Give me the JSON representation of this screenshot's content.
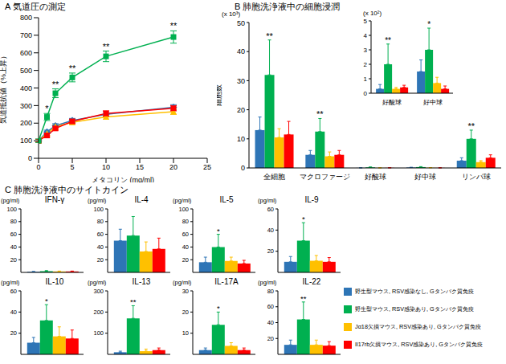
{
  "section_title": "C 肺胞洗浄液中のサイトカイン",
  "chart_data": [
    {
      "type": "line",
      "title": "A 気道圧の測定",
      "xlabel": "メタコリン (mg/ml)",
      "ylabel": "気道抵抗値（%上昇）",
      "x": [
        0,
        1.25,
        2.5,
        5,
        10,
        20
      ],
      "xlim": [
        0,
        25
      ],
      "xticks": [
        0,
        5,
        10,
        15,
        20,
        25
      ],
      "ylim": [
        0,
        800
      ],
      "yticks": [
        0,
        100,
        200,
        300,
        400,
        500,
        600,
        700,
        800
      ],
      "series": [
        {
          "name": "野生型マウス, RSV感染なし, Gタンパク質免疫",
          "color": "#2E75B6",
          "marker": "diamond",
          "values": [
            100,
            150,
            185,
            215,
            250,
            290
          ],
          "errors": [
            8,
            10,
            12,
            12,
            15,
            15
          ]
        },
        {
          "name": "野生型マウス, RSV感染あり, Gタンパク質免疫",
          "color": "#00B050",
          "marker": "square",
          "values": [
            100,
            235,
            370,
            460,
            580,
            690
          ],
          "errors": [
            10,
            20,
            25,
            25,
            30,
            35
          ],
          "annotations": [
            null,
            "*",
            "**",
            "**",
            "**",
            "**"
          ]
        },
        {
          "name": "Jα18欠損マウス, RSV感染あり, Gタンパク質免疫",
          "color": "#FFC000",
          "marker": "triangle",
          "values": [
            100,
            140,
            180,
            205,
            235,
            265
          ],
          "errors": [
            8,
            10,
            10,
            12,
            12,
            15
          ]
        },
        {
          "name": "Il17rb欠損マウス, RSV感染あり, Gタンパク質免疫",
          "color": "#FF0000",
          "marker": "square",
          "values": [
            100,
            130,
            170,
            210,
            255,
            285
          ],
          "errors": [
            8,
            10,
            10,
            12,
            15,
            15
          ]
        }
      ]
    },
    {
      "type": "bar",
      "title": "B 肺胞洗浄液中の細胞浸潤",
      "ylabel": "細胞数",
      "y_unit_label": "(x 10³)",
      "categories": [
        "全細胞",
        "マクロファージ",
        "好酸球",
        "好中球",
        "リンパ球"
      ],
      "ylim": [
        0,
        50
      ],
      "yticks": [
        0,
        10,
        20,
        30,
        40,
        50
      ],
      "series": [
        {
          "name": "野生型マウス, RSV感染なし, Gタンパク質免疫",
          "color": "#2E75B6",
          "values": [
            13,
            4.5,
            0.03,
            0.15,
            2.5
          ],
          "errors": [
            4.5,
            1.5,
            0.03,
            0.08,
            1
          ]
        },
        {
          "name": "野生型マウス, RSV感染あり, Gタンパク質免疫",
          "color": "#00B050",
          "values": [
            32,
            12.5,
            0.2,
            0.3,
            10
          ],
          "errors": [
            12,
            4.5,
            0.14,
            0.15,
            3
          ],
          "annotations": [
            "**",
            "**",
            null,
            null,
            "**"
          ]
        },
        {
          "name": "Jα18欠損マウス, RSV感染あり, Gタンパク質免疫",
          "color": "#FFC000",
          "values": [
            10.5,
            4,
            0.03,
            0.07,
            2
          ],
          "errors": [
            3,
            1.5,
            0.01,
            0.04,
            0.5
          ]
        },
        {
          "name": "Il17rb欠損マウス, RSV感染あり, Gタンパク質免疫",
          "color": "#FF0000",
          "values": [
            11.5,
            4.5,
            0.04,
            0.03,
            3.5
          ],
          "errors": [
            4.5,
            1.5,
            0.015,
            0.02,
            1
          ]
        }
      ]
    },
    {
      "type": "bar",
      "y_unit_label": "(x 10²)",
      "categories": [
        "好酸球",
        "好中球"
      ],
      "ylim": [
        0,
        5
      ],
      "yticks": [
        0,
        1,
        2,
        3,
        4,
        5
      ],
      "series": [
        {
          "name": "野生型マウス, RSV感染なし, Gタンパク質免疫",
          "color": "#2E75B6",
          "values": [
            0.3,
            1.5
          ],
          "errors": [
            0.3,
            0.8
          ]
        },
        {
          "name": "野生型マウス, RSV感染あり, Gタンパク質免疫",
          "color": "#00B050",
          "values": [
            2.0,
            3.0
          ],
          "errors": [
            1.4,
            1.5
          ],
          "annotations": [
            "**",
            "*"
          ]
        },
        {
          "name": "Jα18欠損マウス, RSV感染あり, Gタンパク質免疫",
          "color": "#FFC000",
          "values": [
            0.3,
            0.7
          ],
          "errors": [
            0.1,
            0.4
          ]
        },
        {
          "name": "Il17rb欠損マウス, RSV感染あり, Gタンパク質免疫",
          "color": "#FF0000",
          "values": [
            0.4,
            0.3
          ],
          "errors": [
            0.15,
            0.2
          ]
        }
      ]
    },
    {
      "type": "bar",
      "title": "IFN-γ",
      "ylabel": "(pg/ml)",
      "categories": [
        null
      ],
      "ylim": [
        0,
        100
      ],
      "yticks": [
        0,
        20,
        40,
        60,
        80,
        100
      ],
      "series": [
        {
          "name": "野生型マウス, RSV感染なし, Gタンパク質免疫",
          "color": "#2E75B6",
          "values": [
            1
          ],
          "errors": [
            0.5
          ]
        },
        {
          "name": "野生型マウス, RSV感染あり, Gタンパク質免疫",
          "color": "#00B050",
          "values": [
            2
          ],
          "errors": [
            0.8
          ]
        },
        {
          "name": "Jα18欠損マウス, RSV感染あり, Gタンパク質免疫",
          "color": "#FFC000",
          "values": [
            1.5
          ],
          "errors": [
            0.6
          ]
        },
        {
          "name": "Il17rb欠損マウス, RSV感染あり, Gタンパク質免疫",
          "color": "#FF0000",
          "values": [
            1.5
          ],
          "errors": [
            0.6
          ]
        }
      ]
    },
    {
      "type": "bar",
      "title": "IL-4",
      "ylabel": "(pg/ml)",
      "categories": [
        null
      ],
      "ylim": [
        0,
        100
      ],
      "yticks": [
        0,
        20,
        40,
        60,
        80,
        100
      ],
      "series": [
        {
          "name": "野生型マウス, RSV感染なし, Gタンパク質免疫",
          "color": "#2E75B6",
          "values": [
            50
          ],
          "errors": [
            18
          ]
        },
        {
          "name": "野生型マウス, RSV感染あり, Gタンパク質免疫",
          "color": "#00B050",
          "values": [
            58
          ],
          "errors": [
            30
          ]
        },
        {
          "name": "Jα18欠損マウス, RSV感染あり, Gタンパク質免疫",
          "color": "#FFC000",
          "values": [
            33
          ],
          "errors": [
            15
          ]
        },
        {
          "name": "Il17rb欠損マウス, RSV感染あり, Gタンパク質免疫",
          "color": "#FF0000",
          "values": [
            37
          ],
          "errors": [
            17
          ]
        }
      ]
    },
    {
      "type": "bar",
      "title": "IL-5",
      "ylabel": "(pg/ml)",
      "categories": [
        null
      ],
      "ylim": [
        0,
        100
      ],
      "yticks": [
        0,
        20,
        40,
        60,
        80,
        100
      ],
      "series": [
        {
          "name": "野生型マウス, RSV感染なし, Gタンパク質免疫",
          "color": "#2E75B6",
          "values": [
            16
          ],
          "errors": [
            8
          ]
        },
        {
          "name": "野生型マウス, RSV感染あり, Gタンパク質免疫",
          "color": "#00B050",
          "values": [
            40
          ],
          "errors": [
            20
          ],
          "annotations": [
            "*"
          ]
        },
        {
          "name": "Jα18欠損マウス, RSV感染あり, Gタンパク質免疫",
          "color": "#FFC000",
          "values": [
            18
          ],
          "errors": [
            6
          ]
        },
        {
          "name": "Il17rb欠損マウス, RSV感染あり, Gタンパク質免疫",
          "color": "#FF0000",
          "values": [
            14
          ],
          "errors": [
            5
          ]
        }
      ]
    },
    {
      "type": "bar",
      "title": "IL-9",
      "ylabel": "(pg/ml)",
      "categories": [
        null
      ],
      "ylim": [
        0,
        60
      ],
      "yticks": [
        0,
        20,
        40,
        60
      ],
      "series": [
        {
          "name": "野生型マウス, RSV感染なし, Gタンパク質免疫",
          "color": "#2E75B6",
          "values": [
            10
          ],
          "errors": [
            5
          ]
        },
        {
          "name": "野生型マウス, RSV感染あり, Gタンパク質免疫",
          "color": "#00B050",
          "values": [
            30
          ],
          "errors": [
            17
          ],
          "annotations": [
            "*"
          ]
        },
        {
          "name": "Jα18欠損マウス, RSV感染あり, Gタンパク質免疫",
          "color": "#FFC000",
          "values": [
            11
          ],
          "errors": [
            5
          ]
        },
        {
          "name": "Il17rb欠損マウス, RSV感染あり, Gタンパク質免疫",
          "color": "#FF0000",
          "values": [
            10
          ],
          "errors": [
            4
          ]
        }
      ]
    },
    {
      "type": "bar",
      "title": "IL-10",
      "ylabel": "(pg/ml)",
      "categories": [
        null
      ],
      "ylim": [
        0,
        60
      ],
      "yticks": [
        0,
        20,
        40,
        60
      ],
      "series": [
        {
          "name": "野生型マウス, RSV感染なし, Gタンパク質免疫",
          "color": "#2E75B6",
          "values": [
            11
          ],
          "errors": [
            5
          ]
        },
        {
          "name": "野生型マウス, RSV感染あり, Gタンパク質免疫",
          "color": "#00B050",
          "values": [
            32
          ],
          "errors": [
            15
          ],
          "annotations": [
            "*"
          ]
        },
        {
          "name": "Jα18欠損マウス, RSV感染あり, Gタンパク質免疫",
          "color": "#FFC000",
          "values": [
            17
          ],
          "errors": [
            9
          ]
        },
        {
          "name": "Il17rb欠損マウス, RSV感染あり, Gタンパク質免疫",
          "color": "#FF0000",
          "values": [
            15
          ],
          "errors": [
            8
          ]
        }
      ]
    },
    {
      "type": "bar",
      "title": "IL-13",
      "ylabel": "(pg/ml)",
      "categories": [
        null
      ],
      "ylim": [
        0,
        300
      ],
      "yticks": [
        0,
        100,
        200,
        300
      ],
      "series": [
        {
          "name": "野生型マウス, RSV感染なし, Gタンパク質免疫",
          "color": "#2E75B6",
          "values": [
            10
          ],
          "errors": [
            5
          ]
        },
        {
          "name": "野生型マウス, RSV感染あり, Gタンパク質免疫",
          "color": "#00B050",
          "values": [
            170
          ],
          "errors": [
            60
          ],
          "annotations": [
            "**"
          ]
        },
        {
          "name": "Jα18欠損マウス, RSV感染あり, Gタンパク質免疫",
          "color": "#FFC000",
          "values": [
            15
          ],
          "errors": [
            10
          ]
        },
        {
          "name": "Il17rb欠損マウス, RSV感染あり, Gタンパク質免疫",
          "color": "#FF0000",
          "values": [
            20
          ],
          "errors": [
            10
          ]
        }
      ]
    },
    {
      "type": "bar",
      "title": "IL-17A",
      "ylabel": "(pg/ml)",
      "categories": [
        null
      ],
      "ylim": [
        0,
        30
      ],
      "yticks": [
        0,
        10,
        20,
        30
      ],
      "series": [
        {
          "name": "野生型マウス, RSV感染なし, Gタンパク質免疫",
          "color": "#2E75B6",
          "values": [
            2
          ],
          "errors": [
            1
          ]
        },
        {
          "name": "野生型マウス, RSV感染あり, Gタンパク質免疫",
          "color": "#00B050",
          "values": [
            14
          ],
          "errors": [
            6
          ],
          "annotations": [
            "*"
          ]
        },
        {
          "name": "Jα18欠損マウス, RSV感染あり, Gタンパク質免疫",
          "color": "#FFC000",
          "values": [
            4
          ],
          "errors": [
            1.5
          ]
        },
        {
          "name": "Il17rb欠損マウス, RSV感染あり, Gタンパク質免疫",
          "color": "#FF0000",
          "values": [
            2
          ],
          "errors": [
            1
          ]
        }
      ]
    },
    {
      "type": "bar",
      "title": "IL-22",
      "ylabel": "(pg/ml)",
      "categories": [
        null
      ],
      "ylim": [
        0,
        80
      ],
      "yticks": [
        0,
        20,
        40,
        60,
        80
      ],
      "series": [
        {
          "name": "野生型マウス, RSV感染なし, Gタンパク質免疫",
          "color": "#2E75B6",
          "values": [
            12
          ],
          "errors": [
            6
          ]
        },
        {
          "name": "野生型マウス, RSV感染あり, Gタンパク質免疫",
          "color": "#00B050",
          "values": [
            44
          ],
          "errors": [
            22
          ],
          "annotations": [
            "**"
          ]
        },
        {
          "name": "Jα18欠損マウス, RSV感染あり, Gタンパク質免疫",
          "color": "#FFC000",
          "values": [
            12
          ],
          "errors": [
            6
          ]
        },
        {
          "name": "Il17rb欠損マウス, RSV感染あり, Gタンパク質免疫",
          "color": "#FF0000",
          "values": [
            11
          ],
          "errors": [
            5
          ]
        }
      ]
    }
  ]
}
